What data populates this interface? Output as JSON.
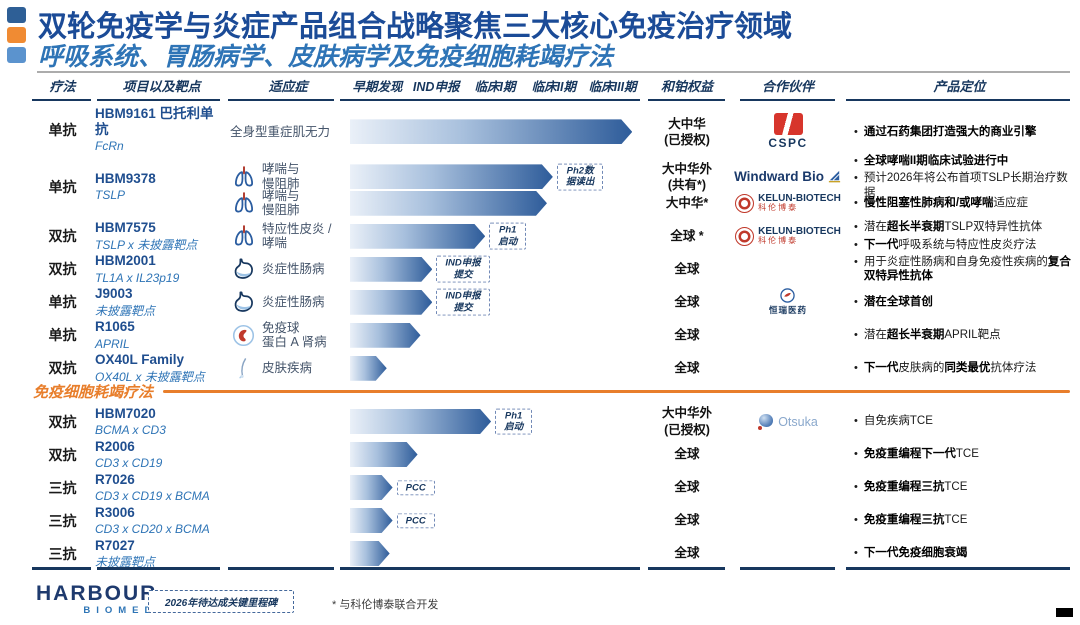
{
  "header": {
    "title": "双轮免疫学与炎症产品组合战略聚焦三大核心免疫治疗领域",
    "subtitle": "呼吸系统、胃肠病学、皮肤病学及免疫细胞耗竭疗法",
    "accent_colors": [
      "#2E5F96",
      "#F08B33",
      "#5B93CE"
    ]
  },
  "columns": {
    "therapy": "疗法",
    "project": "项目以及靶点",
    "indication": "适应症",
    "phases": [
      "早期发现",
      "IND申报",
      "临床I期",
      "临床II期",
      "临床III期"
    ],
    "rights": "和铂权益",
    "partner": "合作伙伴",
    "positioning": "产品定位"
  },
  "sections": [
    {
      "label": "",
      "rows": [
        {
          "therapy": "单抗",
          "name": "HBM9161 巴托利单抗",
          "target": "FcRn",
          "subs": [
            {
              "icon": null,
              "indication": "全身型重症肌无力",
              "bar_pct": 96,
              "milestone": null,
              "rights": "大中华\n(已授权)",
              "partner": "cspc",
              "bullets": [
                [
                  {
                    "b": true,
                    "t": "通过石药集团打造强大的商业引擎"
                  }
                ]
              ]
            }
          ]
        },
        {
          "therapy": "单抗",
          "name": "HBM9378",
          "target": "TSLP",
          "subs": [
            {
              "icon": "lungs",
              "indication": "哮喘与\n慢阻肺",
              "bar_pct": 69,
              "milestone": "Ph2数\n据读出",
              "rights": "大中华外\n(共有*)",
              "partner": "windward",
              "bullets": [
                [
                  {
                    "b": true,
                    "t": "全球哮喘II期临床试验进行中"
                  }
                ],
                [
                  {
                    "b": false,
                    "t": "预计2026年将公布首项TSLP长期治疗数据"
                  }
                ]
              ]
            },
            {
              "icon": "lungs",
              "indication": "哮喘与\n慢阻肺",
              "bar_pct": 67,
              "milestone": null,
              "rights": "大中华*",
              "partner": "kelun",
              "bullets": [
                [
                  {
                    "b": true,
                    "t": "慢性阻塞性肺病和/或哮喘"
                  },
                  {
                    "b": false,
                    "t": "适应症"
                  }
                ]
              ]
            }
          ]
        },
        {
          "therapy": "双抗",
          "name": "HBM7575",
          "target": "TSLP x 未披露靶点",
          "subs": [
            {
              "icon": "lungs",
              "indication": "特应性皮炎 /\n哮喘",
              "bar_pct": 46,
              "milestone": "Ph1\n启动",
              "rights": "全球 *",
              "partner": "kelun",
              "bullets": [
                [
                  {
                    "b": false,
                    "t": "潜在"
                  },
                  {
                    "b": true,
                    "t": "超长半衰期"
                  },
                  {
                    "b": false,
                    "t": "TSLP双特异性抗体"
                  }
                ],
                [
                  {
                    "b": true,
                    "t": "下一代"
                  },
                  {
                    "b": false,
                    "t": "呼吸系统与特应性皮炎疗法"
                  }
                ]
              ]
            }
          ]
        },
        {
          "therapy": "双抗",
          "name": "HBM2001",
          "target": "TL1A x IL23p19",
          "subs": [
            {
              "icon": "stomach",
              "indication": "炎症性肠病",
              "bar_pct": 28,
              "milestone": "IND申报\n提交",
              "rights": "全球",
              "partner": null,
              "bullets": [
                [
                  {
                    "b": false,
                    "t": "用于炎症性肠病和自身免疫性疾病的"
                  },
                  {
                    "b": true,
                    "t": "复合双特异性抗体"
                  }
                ]
              ]
            }
          ]
        },
        {
          "therapy": "单抗",
          "name": "J9003",
          "target": "未披露靶点",
          "subs": [
            {
              "icon": "stomach",
              "indication": "炎症性肠病",
              "bar_pct": 28,
              "milestone": "IND申报\n提交",
              "rights": "全球",
              "partner": "hengrui",
              "bullets": [
                [
                  {
                    "b": true,
                    "t": "潜在全球首创"
                  }
                ]
              ]
            }
          ]
        },
        {
          "therapy": "单抗",
          "name": "R1065",
          "target": "APRIL",
          "subs": [
            {
              "icon": "kidney",
              "indication": "免疫球\n蛋白 A 肾病",
              "bar_pct": 24,
              "milestone": null,
              "rights": "全球",
              "partner": null,
              "bullets": [
                [
                  {
                    "b": false,
                    "t": "潜在"
                  },
                  {
                    "b": true,
                    "t": "超长半衰期"
                  },
                  {
                    "b": false,
                    "t": "APRIL靶点"
                  }
                ]
              ]
            }
          ]
        },
        {
          "therapy": "双抗",
          "name": "OX40L Family",
          "target": "OX40L x 未披露靶点",
          "subs": [
            {
              "icon": "skin",
              "indication": "皮肤疾病",
              "bar_pct": 12.5,
              "milestone": null,
              "rights": "全球",
              "partner": null,
              "bullets": [
                [
                  {
                    "b": true,
                    "t": "下一代"
                  },
                  {
                    "b": false,
                    "t": "皮肤病的"
                  },
                  {
                    "b": true,
                    "t": "同类最优"
                  },
                  {
                    "b": false,
                    "t": "抗体疗法"
                  }
                ]
              ]
            }
          ]
        }
      ]
    },
    {
      "label": "免疫细胞耗竭疗法",
      "rows": [
        {
          "therapy": "双抗",
          "name": "HBM7020",
          "target": "BCMA x CD3",
          "subs": [
            {
              "icon": null,
              "indication": "",
              "bar_pct": 48,
              "milestone": "Ph1\n启动",
              "rights": "大中华外\n(已授权)",
              "partner": "otsuka",
              "bullets": [
                [
                  {
                    "b": false,
                    "t": "自免疾病TCE"
                  }
                ]
              ]
            }
          ]
        },
        {
          "therapy": "双抗",
          "name": "R2006",
          "target": "CD3 x CD19",
          "subs": [
            {
              "icon": null,
              "indication": "",
              "bar_pct": 23,
              "milestone": null,
              "rights": "全球",
              "partner": null,
              "bullets": [
                [
                  {
                    "b": true,
                    "t": "免疫重编程下一代"
                  },
                  {
                    "b": false,
                    "t": "TCE"
                  }
                ]
              ]
            }
          ]
        },
        {
          "therapy": "三抗",
          "name": "R7026",
          "target": "CD3 x CD19 x BCMA",
          "subs": [
            {
              "icon": null,
              "indication": "",
              "bar_pct": 14.5,
              "milestone": "PCC",
              "rights": "全球",
              "partner": null,
              "bullets": [
                [
                  {
                    "b": true,
                    "t": "免疫重编程三抗"
                  },
                  {
                    "b": false,
                    "t": "TCE"
                  }
                ]
              ]
            }
          ]
        },
        {
          "therapy": "三抗",
          "name": "R3006",
          "target": "CD3 x CD20 x BCMA",
          "subs": [
            {
              "icon": null,
              "indication": "",
              "bar_pct": 14.5,
              "milestone": "PCC",
              "rights": "全球",
              "partner": null,
              "bullets": [
                [
                  {
                    "b": true,
                    "t": "免疫重编程三抗"
                  },
                  {
                    "b": false,
                    "t": "TCE"
                  }
                ]
              ]
            }
          ]
        },
        {
          "therapy": "三抗",
          "name": "R7027",
          "target": "未披露靶点",
          "subs": [
            {
              "icon": null,
              "indication": "",
              "bar_pct": 13.5,
              "milestone": null,
              "rights": "全球",
              "partner": null,
              "bullets": [
                [
                  {
                    "b": true,
                    "t": "下一代免疫细胞衰竭"
                  }
                ]
              ]
            }
          ]
        }
      ]
    }
  ],
  "partners": {
    "cspc": {
      "text": "CSPC"
    },
    "windward": {
      "text": "Windward Bio"
    },
    "kelun": {
      "name": "KELUN-BIOTECH",
      "cn": "科伦博泰"
    },
    "hengrui": {
      "text": "恒瑞医药"
    },
    "otsuka": {
      "text": "Otsuka"
    }
  },
  "footer": {
    "logo_line1": "HARBOUR",
    "logo_line2": "BIOMED",
    "milestone_legend": "2026年待达成关键里程碑",
    "footnote": "* 与科伦博泰联合开发"
  },
  "colors": {
    "title_blue": "#1B4B97",
    "subtitle_blue": "#2E74B6",
    "header_navy": "#17375E",
    "bar_dark_blue": "#2E5C9A",
    "section_orange": "#E87E2B",
    "cspc_red": "#D7352C",
    "kelun_red": "#C0392B"
  }
}
